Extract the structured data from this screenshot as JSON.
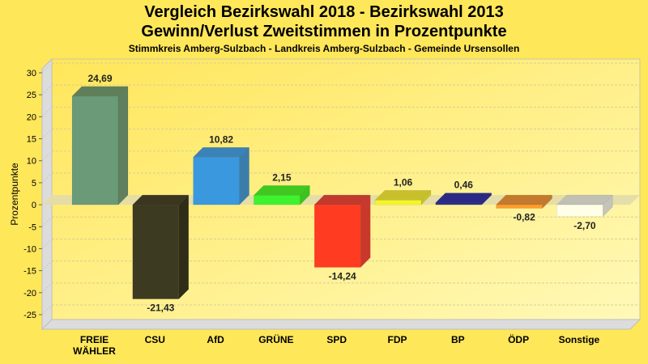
{
  "chart_data": {
    "type": "bar",
    "title": "Vergleich Bezirkswahl 2018 - Bezirkswahl 2013",
    "subtitle": "Gewinn/Verlust Zweitstimmen in Prozentpunkte",
    "subsubtitle": "Stimmkreis Amberg-Sulzbach - Landkreis Amberg-Sulzbach - Gemeinde Ursensollen",
    "xlabel": "",
    "ylabel": "Prozentpunkte",
    "ylim": [
      -25,
      30
    ],
    "yticks": [
      30,
      25,
      20,
      15,
      10,
      5,
      0,
      -5,
      -10,
      -15,
      -20,
      -25
    ],
    "grid": true,
    "categories": [
      [
        "FREIE",
        "WÄHLER"
      ],
      [
        "CSU"
      ],
      [
        "AfD"
      ],
      [
        "GRÜNE"
      ],
      [
        "SPD"
      ],
      [
        "FDP"
      ],
      [
        "BP"
      ],
      [
        "ÖDP"
      ],
      [
        "Sonstige"
      ]
    ],
    "values": [
      24.69,
      -21.43,
      10.82,
      2.15,
      -14.24,
      1.06,
      0.46,
      -0.82,
      -2.7
    ],
    "value_labels": [
      "24,69",
      "-21,43",
      "10,82",
      "2,15",
      "-14,24",
      "1,06",
      "0,46",
      "-0,82",
      "-2,70"
    ],
    "colors": [
      "#6A9A78",
      "#3D3A22",
      "#3A98DF",
      "#3FF22E",
      "#FF3B22",
      "#F5F52A",
      "#2E2E8E",
      "#FF9D2A",
      "#FFFFE8"
    ],
    "side_colors": [
      "#5F7F5F",
      "#2F2C18",
      "#3A7DAA",
      "#3BC41E",
      "#C9382A",
      "#C9C42A",
      "#24247A",
      "#C47A30",
      "#C4C4B8"
    ],
    "top_colors": [
      "#5F7F5A",
      "#3A3620",
      "#3A82B8",
      "#40C820",
      "#C23A2E",
      "#C8C02A",
      "#2A2A86",
      "#C47A2E",
      "#C0C0B4"
    ]
  },
  "colors": {
    "background": "#FFE75A",
    "plot_top": "#FFE860",
    "plot_bottom": "#FFF8B0",
    "wall": "#DCDCDC"
  }
}
